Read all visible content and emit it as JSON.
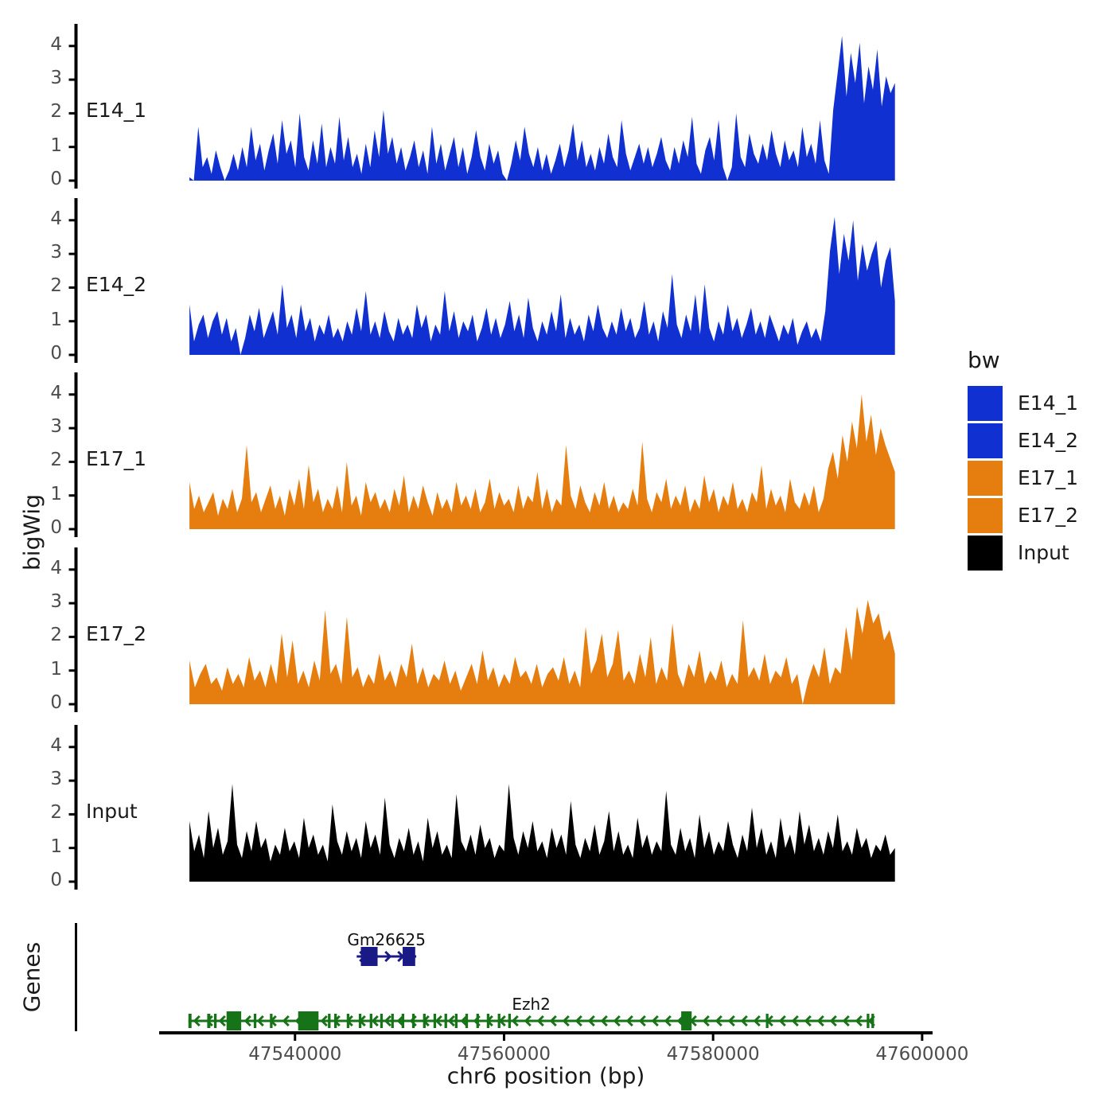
{
  "figure": {
    "y_axis_title": "bigWig",
    "genes_axis_title": "Genes",
    "x_axis_title": "chr6 position (bp)",
    "legend": {
      "title": "bw",
      "entries": [
        {
          "label": "E14_1",
          "color": "#1030d2"
        },
        {
          "label": "E14_2",
          "color": "#1030d2"
        },
        {
          "label": "E17_1",
          "color": "#e67d0f"
        },
        {
          "label": "E17_2",
          "color": "#e67d0f"
        },
        {
          "label": "Input",
          "color": "#000000"
        }
      ]
    },
    "colors": {
      "e14_blue": "#1030d2",
      "e17_orange": "#e67d0f",
      "input_black": "#000000",
      "gm26625_navy": "#1a1a87",
      "ezh2_green": "#177317",
      "tick_text": "#4d4d4d",
      "axis": "#000000"
    }
  },
  "chart_data": {
    "type": "area",
    "xlabel": "chr6 position (bp)",
    "ylabel": "bigWig",
    "x_axis_bp_range": [
      47527000,
      47601000
    ],
    "data_range_bp": [
      47529900,
      47597400
    ],
    "xticks": [
      47540000,
      47560000,
      47580000,
      47600000
    ],
    "yticks": [
      0,
      1,
      2,
      3,
      4
    ],
    "ylim": [
      0,
      4.6
    ],
    "grid": false,
    "legend_position": "right",
    "tracks": [
      {
        "name": "E14_1",
        "color": "#1030d2",
        "values": [
          0.1,
          0,
          1.6,
          0.4,
          0.7,
          0.2,
          0.9,
          0.4,
          0,
          0.3,
          0.8,
          0.3,
          1.0,
          0.4,
          1.6,
          0.6,
          1.1,
          0.3,
          0.9,
          1.4,
          0.5,
          1.8,
          0.8,
          1.2,
          0.4,
          2.0,
          0.7,
          0.3,
          1.2,
          0.5,
          1.7,
          0.4,
          1.0,
          0.5,
          1.9,
          0.6,
          1.3,
          0.4,
          0.8,
          0.2,
          1.1,
          0.4,
          1.5,
          0.7,
          2.1,
          0.8,
          1.3,
          0.5,
          1.0,
          0.3,
          0.7,
          1.2,
          0.4,
          0.9,
          0.2,
          1.6,
          0.5,
          1.1,
          0.3,
          0.8,
          1.3,
          0.4,
          1.0,
          0.2,
          0.7,
          1.5,
          0.7,
          0.3,
          1.1,
          0.5,
          0.9,
          0.2,
          0,
          0.5,
          1.2,
          0.6,
          1.6,
          0.8,
          0.4,
          1.0,
          0.3,
          0.8,
          0.2,
          0.6,
          1.1,
          0.4,
          0.9,
          1.7,
          0.6,
          1.2,
          0.4,
          0.8,
          0.3,
          1.0,
          0.5,
          1.4,
          0.7,
          0.4,
          1.8,
          0.8,
          0.3,
          0.7,
          1.1,
          0.5,
          1.0,
          0.4,
          0.8,
          1.3,
          0.6,
          0.3,
          1.0,
          0.5,
          1.2,
          0.7,
          1.9,
          0.5,
          0.2,
          0.9,
          1.3,
          0.6,
          1.8,
          0.4,
          0,
          0.4,
          2.0,
          0.7,
          0.4,
          1.4,
          0.8,
          0.5,
          1.1,
          0.6,
          1.5,
          0.8,
          0.4,
          1.2,
          0.6,
          0.9,
          0.4,
          1.6,
          0.7,
          1.1,
          0.5,
          1.8,
          0.6,
          0.2,
          2.1,
          3.2,
          4.3,
          2.5,
          3.8,
          2.9,
          4.1,
          2.3,
          3.4,
          2.7,
          3.9,
          2.2,
          3.1,
          2.6,
          2.9
        ]
      },
      {
        "name": "E14_2",
        "color": "#1030d2",
        "values": [
          1.5,
          0.4,
          0.9,
          1.2,
          0.5,
          1.0,
          1.3,
          0.6,
          1.1,
          0.4,
          0.8,
          0,
          0.5,
          1.2,
          0.7,
          1.4,
          0.5,
          0.9,
          1.3,
          0.6,
          2.1,
          0.8,
          1.2,
          0.5,
          1.5,
          0.7,
          1.1,
          0.4,
          0.9,
          0.6,
          1.2,
          0.5,
          0.8,
          0.4,
          1.0,
          0.6,
          1.4,
          0.7,
          1.9,
          0.6,
          1.0,
          0.5,
          1.3,
          0.7,
          0.4,
          1.1,
          0.6,
          0.9,
          0.5,
          1.5,
          0.8,
          1.2,
          0.4,
          0.9,
          0.6,
          1.9,
          0.7,
          1.3,
          0.5,
          1.0,
          0.7,
          1.2,
          0.4,
          0.8,
          1.4,
          0.6,
          1.1,
          0.5,
          0.9,
          1.6,
          0.7,
          1.2,
          0.5,
          1.7,
          0.8,
          0.4,
          1.0,
          0.6,
          1.3,
          0.7,
          1.8,
          0.5,
          1.1,
          0.6,
          0.9,
          0.4,
          1.2,
          0.7,
          1.5,
          0.8,
          0.5,
          1.0,
          0.6,
          1.4,
          0.7,
          1.1,
          0.5,
          0.8,
          1.6,
          0.6,
          1.0,
          0.4,
          1.3,
          0.8,
          2.4,
          0.9,
          0.5,
          1.2,
          0.7,
          1.8,
          0.6,
          2.1,
          0.8,
          0.4,
          1.0,
          0.6,
          1.5,
          0.7,
          1.1,
          0.5,
          0.9,
          1.4,
          0.6,
          1.0,
          0.5,
          1.2,
          0.8,
          0.4,
          0.9,
          0.6,
          1.1,
          0.3,
          0.7,
          1.0,
          0.5,
          0.8,
          0.4,
          1.3,
          3.1,
          4.1,
          2.4,
          3.6,
          2.8,
          4.0,
          2.2,
          3.3,
          2.5,
          3.0,
          3.4,
          2.0,
          2.8,
          3.2,
          1.6
        ]
      },
      {
        "name": "E17_1",
        "color": "#e67d0f",
        "values": [
          1.4,
          0.6,
          1.0,
          0.5,
          0.8,
          1.1,
          0.4,
          0.9,
          0.6,
          1.2,
          0.5,
          0.9,
          2.5,
          0.8,
          1.1,
          0.5,
          0.9,
          1.3,
          0.6,
          1.0,
          0.4,
          1.2,
          0.7,
          1.5,
          0.6,
          1.9,
          0.8,
          1.2,
          0.5,
          0.9,
          0.6,
          1.3,
          0.5,
          2.0,
          0.7,
          1.0,
          0.4,
          1.4,
          0.8,
          1.1,
          0.6,
          0.9,
          0.5,
          1.2,
          0.7,
          1.6,
          0.5,
          1.0,
          0.6,
          1.3,
          0.8,
          0.4,
          1.1,
          0.6,
          0.9,
          0.5,
          1.4,
          0.7,
          1.0,
          0.6,
          1.2,
          0.5,
          0.8,
          1.5,
          0.6,
          1.1,
          0.7,
          0.9,
          0.5,
          1.3,
          0.6,
          1.0,
          0.8,
          1.7,
          0.6,
          1.2,
          0.5,
          0.9,
          0.7,
          2.5,
          1.0,
          0.6,
          1.3,
          0.8,
          0.5,
          1.1,
          0.7,
          1.4,
          0.6,
          1.0,
          0.5,
          0.8,
          0.6,
          1.2,
          0.7,
          2.6,
          0.9,
          0.5,
          1.1,
          0.8,
          1.5,
          0.6,
          1.0,
          0.7,
          1.3,
          0.5,
          0.9,
          0.6,
          1.6,
          0.8,
          1.2,
          0.5,
          1.0,
          0.7,
          1.4,
          0.6,
          0.9,
          0.5,
          1.1,
          0.8,
          1.9,
          0.6,
          1.2,
          0.7,
          1.0,
          0.5,
          1.5,
          0.8,
          0.6,
          1.1,
          0.7,
          1.3,
          0.5,
          0.9,
          1.8,
          2.3,
          1.5,
          2.8,
          2.0,
          3.2,
          2.4,
          4.0,
          2.6,
          3.4,
          2.2,
          3.0,
          2.5,
          2.1,
          1.7
        ]
      },
      {
        "name": "E17_2",
        "color": "#e67d0f",
        "values": [
          1.3,
          0.5,
          0.9,
          1.2,
          0.6,
          0.8,
          0.4,
          1.1,
          0.6,
          0.9,
          0.5,
          1.4,
          0.7,
          1.0,
          0.5,
          1.2,
          0.6,
          2.1,
          0.8,
          1.9,
          0.6,
          1.0,
          0.5,
          1.3,
          0.7,
          2.8,
          0.9,
          1.2,
          0.6,
          2.6,
          0.8,
          1.1,
          0.5,
          0.9,
          0.6,
          1.5,
          0.7,
          1.0,
          0.5,
          1.2,
          0.8,
          1.8,
          0.6,
          1.1,
          0.5,
          0.9,
          0.7,
          1.3,
          0.6,
          1.0,
          0.4,
          0.8,
          1.2,
          0.6,
          1.6,
          0.7,
          1.1,
          0.5,
          0.9,
          0.6,
          1.4,
          0.8,
          1.0,
          0.6,
          1.2,
          0.5,
          0.9,
          1.1,
          0.7,
          1.4,
          0.6,
          1.0,
          0.5,
          2.3,
          0.9,
          1.3,
          2.1,
          0.8,
          1.2,
          2.2,
          0.7,
          1.0,
          0.6,
          1.5,
          0.8,
          2.0,
          0.6,
          1.1,
          0.7,
          2.4,
          0.9,
          0.5,
          1.2,
          0.8,
          1.6,
          0.6,
          1.0,
          0.7,
          1.3,
          0.5,
          0.9,
          0.6,
          2.5,
          0.8,
          1.1,
          0.7,
          1.5,
          0.6,
          1.0,
          0.8,
          1.4,
          0.6,
          0.9,
          0,
          0.7,
          1.2,
          0.8,
          1.7,
          0.6,
          1.1,
          0.9,
          2.3,
          1.3,
          2.9,
          2.1,
          3.1,
          2.4,
          2.7,
          1.9,
          2.2,
          1.5
        ]
      },
      {
        "name": "Input",
        "color": "#000000",
        "values": [
          1.8,
          0.9,
          1.4,
          0.7,
          2.1,
          1.0,
          1.6,
          0.8,
          1.2,
          2.9,
          1.1,
          0.7,
          1.5,
          0.9,
          1.8,
          1.0,
          1.3,
          0.6,
          1.1,
          0.8,
          1.6,
          0.9,
          1.2,
          0.7,
          1.9,
          1.0,
          1.4,
          0.8,
          1.1,
          0.6,
          2.3,
          1.2,
          0.8,
          1.5,
          0.9,
          1.3,
          0.7,
          1.8,
          1.0,
          1.4,
          0.8,
          2.5,
          1.1,
          0.7,
          1.3,
          0.9,
          1.6,
          0.8,
          1.2,
          0.6,
          1.9,
          1.0,
          1.5,
          0.8,
          1.1,
          0.7,
          2.6,
          1.2,
          0.9,
          1.4,
          0.8,
          1.7,
          1.0,
          1.3,
          0.7,
          1.1,
          0.9,
          2.9,
          1.3,
          0.8,
          1.5,
          1.0,
          1.8,
          0.9,
          1.2,
          0.7,
          1.6,
          1.0,
          1.4,
          0.8,
          2.4,
          1.1,
          0.7,
          1.3,
          0.9,
          1.7,
          0.8,
          1.2,
          2.1,
          0.9,
          1.5,
          0.8,
          1.1,
          0.7,
          1.9,
          1.0,
          1.4,
          0.8,
          1.2,
          0.9,
          2.7,
          1.1,
          0.8,
          1.6,
          0.9,
          1.3,
          0.7,
          2.0,
          1.0,
          1.5,
          0.8,
          1.2,
          0.9,
          1.8,
          1.1,
          0.7,
          1.4,
          0.9,
          2.2,
          1.0,
          1.6,
          0.8,
          1.2,
          0.7,
          1.9,
          1.0,
          1.4,
          0.8,
          2.1,
          1.1,
          1.7,
          0.9,
          1.3,
          0.8,
          1.5,
          1.0,
          2.0,
          0.9,
          1.2,
          0.8,
          1.6,
          1.0,
          1.3,
          0.7,
          1.1,
          0.9,
          1.4,
          0.8,
          1.0
        ]
      }
    ],
    "genes": {
      "items": [
        {
          "name": "Gm26625",
          "strand": "+",
          "color": "#1a1a87",
          "start_bp": 47545900,
          "end_bp": 47551600,
          "exons_bp": [
            [
              47546300,
              47547900
            ],
            [
              47550300,
              47551500
            ]
          ]
        },
        {
          "name": "Ezh2",
          "strand": "-",
          "color": "#177317",
          "start_bp": 47529800,
          "end_bp": 47595400,
          "exons_bp": [
            [
              47529800,
              47530100
            ],
            [
              47531600,
              47531900
            ],
            [
              47532250,
              47532500
            ],
            [
              47533450,
              47534850
            ],
            [
              47536050,
              47536300
            ],
            [
              47537600,
              47537850
            ],
            [
              47540300,
              47542250
            ],
            [
              47543150,
              47543400
            ],
            [
              47543750,
              47544000
            ],
            [
              47544950,
              47545200
            ],
            [
              47546100,
              47546350
            ],
            [
              47547150,
              47547400
            ],
            [
              47548150,
              47548400
            ],
            [
              47549200,
              47549450
            ],
            [
              47550200,
              47550450
            ],
            [
              47551200,
              47551450
            ],
            [
              47552250,
              47552500
            ],
            [
              47553250,
              47553500
            ],
            [
              47554300,
              47554550
            ],
            [
              47555300,
              47555550
            ],
            [
              47556300,
              47556550
            ],
            [
              47557350,
              47557600
            ],
            [
              47558350,
              47558600
            ],
            [
              47559400,
              47559650
            ],
            [
              47560400,
              47560650
            ],
            [
              47576950,
              47577950
            ],
            [
              47585050,
              47585300
            ],
            [
              47594700,
              47594950
            ],
            [
              47595150,
              47595400
            ]
          ]
        }
      ]
    }
  }
}
